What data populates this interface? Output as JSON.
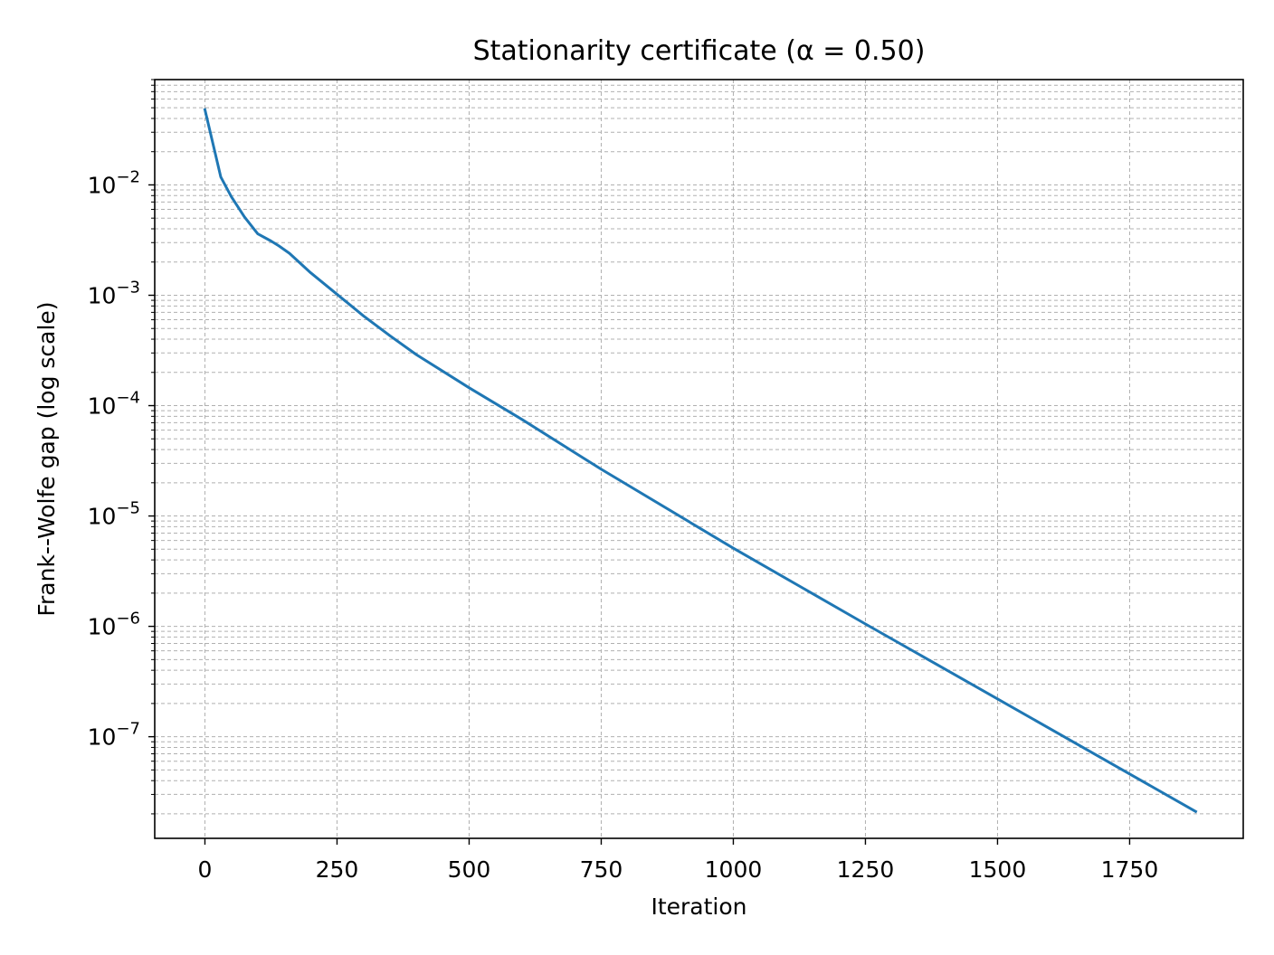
{
  "chart_data": {
    "type": "line",
    "title": "Stationarity certificate (α = 0.50)",
    "xlabel": "Iteration",
    "ylabel": "Frank--Wolfe gap (log scale)",
    "x_ticks": [
      0,
      250,
      500,
      750,
      1000,
      1250,
      1500,
      1750
    ],
    "x_tick_labels": [
      "0",
      "250",
      "500",
      "750",
      "1000",
      "1250",
      "1500",
      "1750"
    ],
    "y_scale": "log",
    "y_ticks": [
      1e-07,
      1e-06,
      1e-05,
      0.0001,
      0.001,
      0.01
    ],
    "y_tick_labels": [
      {
        "base": "10",
        "exp": "−7"
      },
      {
        "base": "10",
        "exp": "−6"
      },
      {
        "base": "10",
        "exp": "−5"
      },
      {
        "base": "10",
        "exp": "−4"
      },
      {
        "base": "10",
        "exp": "−3"
      },
      {
        "base": "10",
        "exp": "−2"
      }
    ],
    "xlim": [
      -95,
      1965
    ],
    "ylim": [
      1.2e-08,
      0.09
    ],
    "grid": true,
    "grid_style": "dashed, major and minor",
    "series": [
      {
        "color": "#1f77b4",
        "x": [
          0,
          30,
          50,
          75,
          100,
          125,
          140,
          160,
          200,
          250,
          300,
          350,
          400,
          500,
          600,
          750,
          1000,
          1250,
          1500,
          1750,
          1875
        ],
        "y": [
          0.048,
          0.0118,
          0.0078,
          0.0051,
          0.0036,
          0.0031,
          0.0028,
          0.0024,
          0.0016,
          0.00102,
          0.00065,
          0.00043,
          0.00029,
          0.000145,
          7.5e-05,
          2.65e-05,
          5.1e-06,
          1.05e-06,
          2.2e-07,
          4.6e-08,
          2.1e-08
        ]
      }
    ]
  }
}
